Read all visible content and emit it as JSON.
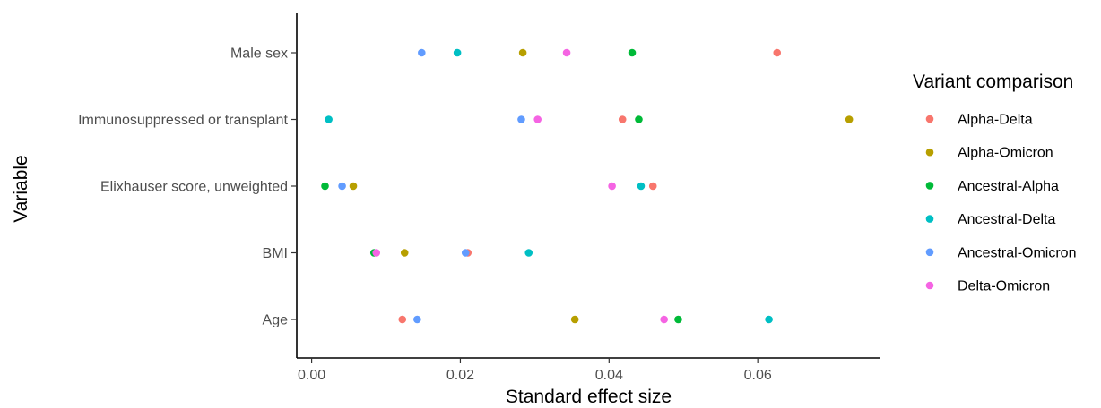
{
  "chart_data": {
    "type": "scatter",
    "xlabel": "Standard effect size",
    "ylabel": "Variable",
    "xlim": [
      -0.002,
      0.0765
    ],
    "x_ticks": [
      0.0,
      0.02,
      0.04,
      0.06
    ],
    "x_tick_labels": [
      "0.00",
      "0.02",
      "0.04",
      "0.06"
    ],
    "categories": [
      "Male sex",
      "Immunosuppressed or transplant",
      "Elixhauser score, unweighted",
      "BMI",
      "Age"
    ],
    "legend": {
      "title": "Variant comparison",
      "position": "right"
    },
    "grid": false,
    "series": [
      {
        "name": "Alpha-Delta",
        "color": "#F8766D",
        "values": [
          0.0626,
          0.0418,
          0.0459,
          0.021,
          0.0122
        ]
      },
      {
        "name": "Alpha-Omicron",
        "color": "#B79F00",
        "values": [
          0.0284,
          0.0723,
          0.0056,
          0.0125,
          0.0354
        ]
      },
      {
        "name": "Ancestral-Alpha",
        "color": "#00BA38",
        "values": [
          0.0431,
          0.044,
          0.0018,
          0.0084,
          0.0493
        ]
      },
      {
        "name": "Ancestral-Delta",
        "color": "#00BFC4",
        "values": [
          0.0196,
          0.0023,
          0.0443,
          0.0292,
          0.0615
        ]
      },
      {
        "name": "Ancestral-Omicron",
        "color": "#619CFF",
        "values": [
          0.0148,
          0.0282,
          0.0041,
          0.0207,
          0.0142
        ]
      },
      {
        "name": "Delta-Omicron",
        "color": "#F564E3",
        "values": [
          0.0343,
          0.0304,
          0.0404,
          0.0087,
          0.0474
        ]
      }
    ]
  }
}
